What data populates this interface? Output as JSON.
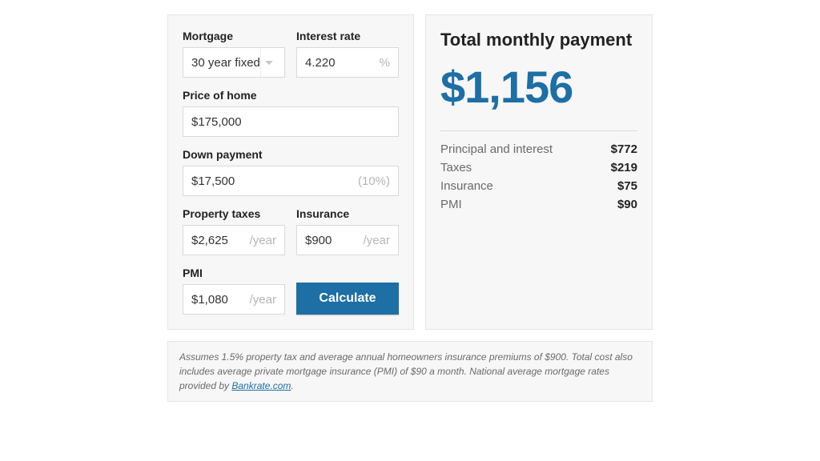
{
  "colors": {
    "accent": "#1d6fa5",
    "panel_border": "#e5e5e5",
    "panel_bg": "#f7f7f7",
    "muted": "#b5b5b5",
    "text": "#222222",
    "subtext": "#6a6a6a"
  },
  "inputs": {
    "mortgage": {
      "label": "Mortgage",
      "value": "30 year fixed"
    },
    "interest_rate": {
      "label": "Interest rate",
      "value": "4.220",
      "suffix": "%"
    },
    "price": {
      "label": "Price of home",
      "value": "$175,000"
    },
    "down_payment": {
      "label": "Down payment",
      "value": "$17,500",
      "suffix": "(10%)"
    },
    "property_taxes": {
      "label": "Property taxes",
      "value": "$2,625",
      "suffix": "/year"
    },
    "insurance": {
      "label": "Insurance",
      "value": "$900",
      "suffix": "/year"
    },
    "pmi": {
      "label": "PMI",
      "value": "$1,080",
      "suffix": "/year"
    },
    "calculate": "Calculate"
  },
  "results": {
    "title": "Total monthly payment",
    "total": "$1,156",
    "lines": [
      {
        "label": "Principal and interest",
        "value": "$772"
      },
      {
        "label": "Taxes",
        "value": "$219"
      },
      {
        "label": "Insurance",
        "value": "$75"
      },
      {
        "label": "PMI",
        "value": "$90"
      }
    ]
  },
  "disclaimer": {
    "text_before": "Assumes 1.5% property tax and average annual homeowners insurance premiums of $900. Total cost also includes average private mortgage insurance (PMI) of $90 a month. National average mortgage rates provided by ",
    "link_text": "Bankrate.com",
    "text_after": "."
  }
}
